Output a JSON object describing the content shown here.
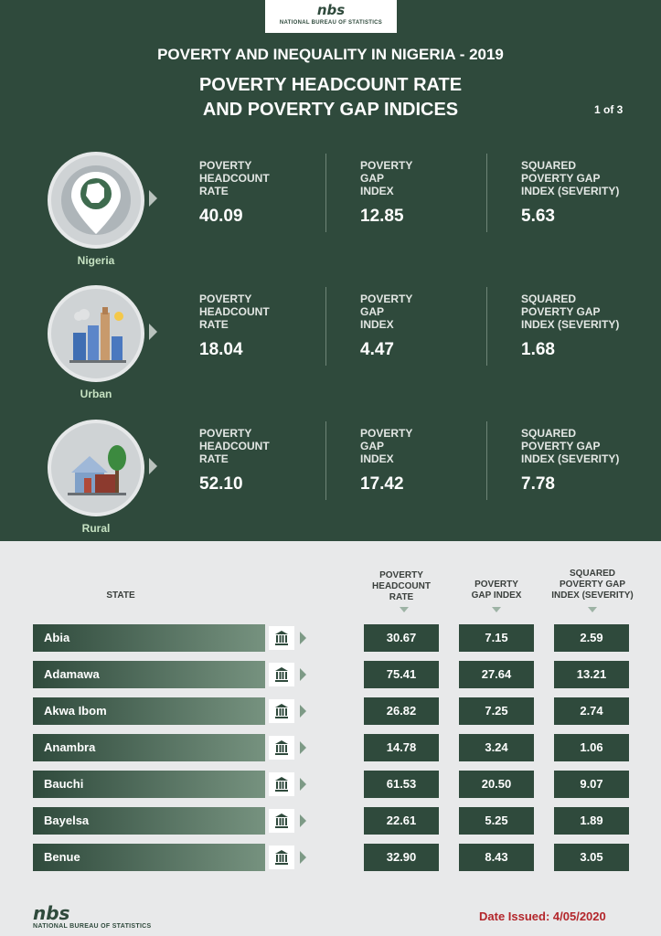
{
  "header": {
    "logo_mark": "nbs",
    "logo_text": "NATIONAL BUREAU OF STATISTICS",
    "title_line1": "POVERTY AND INEQUALITY IN NIGERIA - 2019",
    "title_line2a": "POVERTY HEADCOUNT RATE",
    "title_line2b": "AND POVERTY GAP INDICES",
    "page_indicator": "1 of 3"
  },
  "regions": [
    {
      "name": "Nigeria",
      "icon": "nigeria-map-pin-icon",
      "headcount": "40.09",
      "gap": "12.85",
      "severity": "5.63"
    },
    {
      "name": "Urban",
      "icon": "city-buildings-icon",
      "headcount": "18.04",
      "gap": "4.47",
      "severity": "1.68"
    },
    {
      "name": "Rural",
      "icon": "rural-house-tree-icon",
      "headcount": "52.10",
      "gap": "17.42",
      "severity": "7.78"
    }
  ],
  "indicator_labels": {
    "headcount": [
      "POVERTY",
      "HEADCOUNT",
      "RATE"
    ],
    "gap": [
      "POVERTY",
      "GAP",
      "INDEX"
    ],
    "severity": [
      "SQUARED",
      "POVERTY GAP",
      "INDEX (SEVERITY)"
    ]
  },
  "table": {
    "headers": {
      "state": "STATE",
      "headcount": [
        "POVERTY",
        "HEADCOUNT",
        "RATE"
      ],
      "gap": [
        "POVERTY",
        "GAP INDEX"
      ],
      "severity": [
        "SQUARED",
        "POVERTY GAP",
        "INDEX (SEVERITY)"
      ]
    },
    "rows": [
      {
        "state": "Abia",
        "headcount": "30.67",
        "gap": "7.15",
        "severity": "2.59"
      },
      {
        "state": "Adamawa",
        "headcount": "75.41",
        "gap": "27.64",
        "severity": "13.21"
      },
      {
        "state": "Akwa Ibom",
        "headcount": "26.82",
        "gap": "7.25",
        "severity": "2.74"
      },
      {
        "state": "Anambra",
        "headcount": "14.78",
        "gap": "3.24",
        "severity": "1.06"
      },
      {
        "state": "Bauchi",
        "headcount": "61.53",
        "gap": "20.50",
        "severity": "9.07"
      },
      {
        "state": "Bayelsa",
        "headcount": "22.61",
        "gap": "5.25",
        "severity": "1.89"
      },
      {
        "state": "Benue",
        "headcount": "32.90",
        "gap": "8.43",
        "severity": "3.05"
      }
    ],
    "row_icon": "government-building-icon"
  },
  "footer": {
    "logo_mark": "nbs",
    "logo_text": "NATIONAL BUREAU OF STATISTICS",
    "date_issued": "Date Issued: 4/05/2020"
  },
  "colors": {
    "dark_green": "#2f4a3c",
    "light_green": "#c6e2c2",
    "red": "#b3262b",
    "background": "#e8e9ea"
  }
}
